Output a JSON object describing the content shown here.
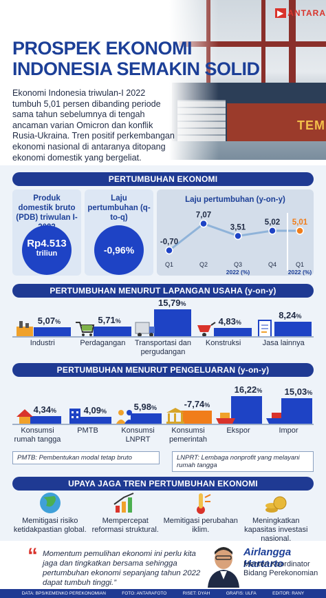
{
  "header": {
    "logo": "ANTARA",
    "title_line1": "PROSPEK EKONOMI",
    "title_line2": "INDONESIA SEMAKIN SOLID",
    "lead": "Ekonomi Indonesia triwulan-I 2022 tumbuh 5,01 persen dibanding periode sama tahun sebelumnya di tengah ancaman varian Omicron dan konflik Rusia-Ukraina. Tren positif perkembangan ekonomi nasional di antaranya ditopang ekonomi domestik yang bergeliat.",
    "ship_text": "TEM"
  },
  "growth": {
    "section_title": "PERTUMBUHAN EKONOMI",
    "pdb_title": "Produk domestik bruto (PDB) triwulan I-2022",
    "pdb_value": "Rp4.513",
    "pdb_unit": "triliun",
    "qtq_title": "Laju pertumbuhan (q-to-q)",
    "qtq_value": "-0,96%",
    "yoy_title": "Laju pertumbuhan (y-on-y)"
  },
  "chart_data": {
    "type": "line",
    "title": "Laju pertumbuhan (y-on-y)",
    "categories": [
      "Q1",
      "Q2",
      "Q3",
      "Q4",
      "Q1"
    ],
    "values": [
      -0.7,
      7.07,
      3.51,
      5.02,
      5.01
    ],
    "labels": [
      "-0,70",
      "7,07",
      "3,51",
      "5,02",
      "5,01"
    ],
    "group_labels": [
      "2022 (%)",
      "2022 (%)"
    ],
    "colors": {
      "line": "#8fb3d9",
      "point": "#1e43c5",
      "highlight": "#f07d1a"
    },
    "ylim": [
      -2,
      9
    ]
  },
  "sector": {
    "section_title": "PERTUMBUHAN MENURUT LAPANGAN USAHA (y-on-y)",
    "items": [
      {
        "label": "Industri",
        "value": "5,07",
        "unit": "%",
        "icon": "factory-icon",
        "num": 5.07
      },
      {
        "label": "Perdagangan",
        "value": "5,71",
        "unit": "%",
        "icon": "shopping-cart-icon",
        "num": 5.71
      },
      {
        "label": "Transportasi dan pergudangan",
        "value": "15,79",
        "unit": "%",
        "icon": "truck-icon",
        "num": 15.79
      },
      {
        "label": "Konstruksi",
        "value": "4,83",
        "unit": "%",
        "icon": "wheelbarrow-icon",
        "num": 4.83
      },
      {
        "label": "Jasa lainnya",
        "value": "8,24",
        "unit": "%",
        "icon": "document-icon",
        "num": 8.24
      }
    ]
  },
  "spending": {
    "section_title": "PERTUMBUHAN MENURUT PENGELUARAN (y-on-y)",
    "items": [
      {
        "label": "Konsumsi rumah tangga",
        "value": "4,34",
        "unit": "%",
        "icon": "home-icon",
        "num": 4.34
      },
      {
        "label": "PMTB",
        "value": "4,09",
        "unit": "%",
        "icon": "building-icon",
        "num": 4.09
      },
      {
        "label": "Konsumsi LNPRT",
        "value": "5,98",
        "unit": "%",
        "icon": "people-icon",
        "num": 5.98
      },
      {
        "label": "Konsumsi pemerintah",
        "value": "-7,74",
        "unit": "%",
        "icon": "government-icon",
        "num": -7.74
      },
      {
        "label": "Ekspor",
        "value": "16,22",
        "unit": "%",
        "icon": "ship-export-icon",
        "num": 16.22
      },
      {
        "label": "Impor",
        "value": "15,03",
        "unit": "%",
        "icon": "ship-import-icon",
        "num": 15.03
      }
    ],
    "note_left": "PMTB: Pembentukan modal tetap bruto",
    "note_right": "LNPRT: Lembaga nonprofit yang melayani rumah tangga"
  },
  "efforts": {
    "section_title": "UPAYA JAGA TREN PERTUMBUHAN EKONOMI",
    "items": [
      {
        "label": "Memitigasi risiko ketidakpastian global.",
        "icon": "globe-icon"
      },
      {
        "label": "Mempercepat reformasi struktural.",
        "icon": "chart-up-icon"
      },
      {
        "label": "Memitigasi perubahan iklim.",
        "icon": "thermometer-icon"
      },
      {
        "label": "Meningkatkan kapasitas investasi nasional.",
        "icon": "coins-icon"
      }
    ]
  },
  "quote": {
    "text": "Momentum pemulihan ekonomi ini perlu kita jaga dan tingkatkan bersama sehingga pertumbuhan ekonomi sepanjang tahun 2022 dapat tumbuh tinggi.”",
    "name": "Airlangga Hartarto",
    "role": "Menteri Koordinator Bidang Perekonomian"
  },
  "footer": {
    "data": "DATA: BPS/KEMENKO PEREKONOMIAN",
    "foto": "FOTO: ANTARAFOTO",
    "riset": "RISET: DYAH",
    "grafis": "GRAFIS: ULFA",
    "editor": "EDITOR: RANY"
  }
}
